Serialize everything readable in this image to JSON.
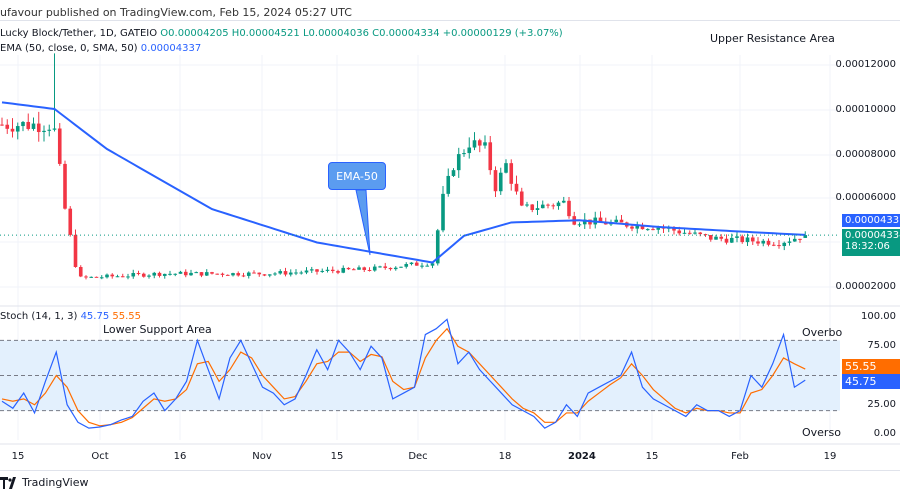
{
  "header": {
    "publisher": "ufavour published on TradingView.com, Feb 15, 2024 05:27 UTC"
  },
  "legend": {
    "symbol": "Lucky Block/Tether, 1D, GATEIO",
    "open": "O0.00004205",
    "high": "H0.00004521",
    "low": "L0.00004036",
    "close": "C0.00004334",
    "change": "+0.00000129 (+3.07%)",
    "ema_label": "EMA (50, close, 0, SMA, 50)",
    "ema_value": "0.00004337"
  },
  "price_axis": [
    "0.00012000",
    "0.00010000",
    "0.00008000",
    "0.00006000",
    "0.00002000"
  ],
  "price_tags": {
    "ema": "0.00004337",
    "last": "0.00004334",
    "countdown": "18:32:06"
  },
  "stoch": {
    "label": "Stoch (14, 1, 3)",
    "k": "45.75",
    "d": "55.55",
    "axis": [
      "100.00",
      "75.00",
      "25.00",
      "0.00"
    ]
  },
  "time_axis": [
    "15",
    "Oct",
    "16",
    "Nov",
    "15",
    "Dec",
    "18",
    "2024",
    "15",
    "Feb",
    "19"
  ],
  "annotations": {
    "upper": "Upper Resistance Area",
    "lower": "Lower Support Area",
    "ema": "EMA-50",
    "overbought": "Overbo",
    "oversold": "Overso"
  },
  "footer": {
    "brand": "TradingView"
  },
  "colors": {
    "up": "#089981",
    "down": "#f23645",
    "ema": "#2962ff",
    "stoch_k": "#2962ff",
    "stoch_d": "#ff6d00",
    "band": "#e3f0fd"
  },
  "chart_data": {
    "type": "candlestick",
    "price_range": [
      1.5e-05,
      0.000128
    ],
    "close_keypoints": [
      [
        0,
        9.3e-05
      ],
      [
        9,
        9.3e-05
      ],
      [
        10,
        9e-05
      ],
      [
        12,
        5.5e-05
      ],
      [
        14,
        3e-05
      ],
      [
        15,
        2.4e-05
      ],
      [
        30,
        2.6e-05
      ],
      [
        50,
        2.6e-05
      ],
      [
        70,
        2.8e-05
      ],
      [
        82,
        3.1e-05
      ],
      [
        84,
        6e-05
      ],
      [
        86,
        7.5e-05
      ],
      [
        89,
        8.5e-05
      ],
      [
        92,
        8.2e-05
      ],
      [
        94,
        6.5e-05
      ],
      [
        96,
        7.5e-05
      ],
      [
        99,
        5.5e-05
      ],
      [
        107,
        5.8e-05
      ],
      [
        109,
        5e-05
      ],
      [
        125,
        4.7e-05
      ],
      [
        135,
        4.2e-05
      ],
      [
        148,
        4e-05
      ],
      [
        153,
        4.33e-05
      ]
    ],
    "ema_keypoints": [
      [
        0,
        0.000103
      ],
      [
        10,
        0.0001
      ],
      [
        20,
        8.2e-05
      ],
      [
        40,
        5.5e-05
      ],
      [
        60,
        4e-05
      ],
      [
        82,
        3.1e-05
      ],
      [
        88,
        4.3e-05
      ],
      [
        97,
        4.9e-05
      ],
      [
        110,
        5e-05
      ],
      [
        125,
        4.7e-05
      ],
      [
        140,
        4.5e-05
      ],
      [
        153,
        4.34e-05
      ]
    ],
    "stoch_k": [
      28,
      22,
      35,
      18,
      45,
      70,
      25,
      10,
      5,
      6,
      8,
      12,
      15,
      28,
      35,
      20,
      30,
      45,
      80,
      55,
      30,
      65,
      80,
      60,
      40,
      35,
      25,
      30,
      50,
      72,
      55,
      80,
      70,
      55,
      75,
      65,
      30,
      35,
      40,
      85,
      90,
      98,
      60,
      70,
      55,
      45,
      35,
      25,
      20,
      15,
      5,
      10,
      25,
      15,
      35,
      40,
      45,
      50,
      70,
      40,
      30,
      25,
      20,
      15,
      25,
      20,
      20,
      15,
      20,
      50,
      40,
      60,
      85,
      40,
      46
    ],
    "stoch_d": [
      30,
      28,
      30,
      25,
      35,
      50,
      40,
      20,
      10,
      7,
      8,
      10,
      14,
      22,
      30,
      28,
      30,
      38,
      60,
      62,
      45,
      55,
      70,
      65,
      50,
      40,
      30,
      32,
      45,
      60,
      62,
      70,
      70,
      62,
      68,
      66,
      45,
      38,
      40,
      65,
      80,
      90,
      75,
      70,
      60,
      50,
      40,
      30,
      22,
      18,
      10,
      10,
      18,
      18,
      28,
      35,
      42,
      48,
      60,
      50,
      38,
      30,
      22,
      18,
      22,
      20,
      20,
      18,
      18,
      35,
      38,
      50,
      65,
      60,
      55.5
    ],
    "stoch_range": [
      0,
      100
    ],
    "bands": [
      20,
      50,
      80
    ]
  }
}
